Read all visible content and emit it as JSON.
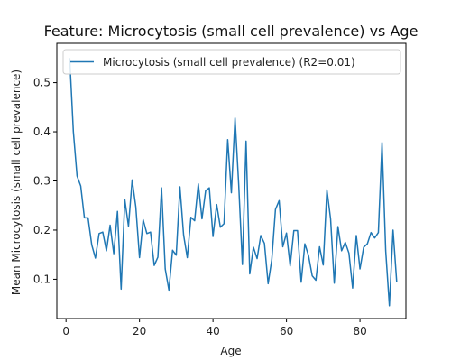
{
  "chart_data": {
    "type": "line",
    "title": "Feature: Microcytosis (small cell prevalence) vs Age",
    "xlabel": "Age",
    "ylabel": "Mean Microcytosis (small cell prevalence)",
    "xlim": [
      -2.5,
      92.5
    ],
    "ylim": [
      0.02,
      0.58
    ],
    "xticks": [
      0,
      20,
      40,
      60,
      80
    ],
    "yticks": [
      0.1,
      0.2,
      0.3,
      0.4,
      0.5
    ],
    "grid": false,
    "legend_position": "top-left",
    "series": [
      {
        "name": "Microcytosis (small cell prevalence) (R2=0.01)",
        "color": "#1f77b4",
        "x": [
          1,
          2,
          3,
          4,
          5,
          6,
          7,
          8,
          9,
          10,
          11,
          12,
          13,
          14,
          15,
          16,
          17,
          18,
          19,
          20,
          21,
          22,
          23,
          24,
          25,
          26,
          27,
          28,
          29,
          30,
          31,
          32,
          33,
          34,
          35,
          36,
          37,
          38,
          39,
          40,
          41,
          42,
          43,
          44,
          45,
          46,
          47,
          48,
          49,
          50,
          51,
          52,
          53,
          54,
          55,
          56,
          57,
          58,
          59,
          60,
          61,
          62,
          63,
          64,
          65,
          66,
          67,
          68,
          69,
          70,
          71,
          72,
          73,
          74,
          75,
          76,
          77,
          78,
          79,
          80,
          81,
          82,
          83,
          84,
          85,
          86,
          87,
          88,
          89,
          90
        ],
        "y": [
          0.55,
          0.4,
          0.31,
          0.29,
          0.225,
          0.225,
          0.17,
          0.143,
          0.193,
          0.196,
          0.158,
          0.21,
          0.152,
          0.238,
          0.08,
          0.262,
          0.208,
          0.302,
          0.247,
          0.144,
          0.221,
          0.193,
          0.196,
          0.128,
          0.145,
          0.286,
          0.121,
          0.078,
          0.159,
          0.149,
          0.288,
          0.19,
          0.144,
          0.226,
          0.219,
          0.294,
          0.223,
          0.28,
          0.286,
          0.187,
          0.252,
          0.206,
          0.213,
          0.384,
          0.276,
          0.428,
          0.292,
          0.13,
          0.381,
          0.111,
          0.165,
          0.142,
          0.189,
          0.173,
          0.091,
          0.14,
          0.242,
          0.26,
          0.166,
          0.194,
          0.127,
          0.199,
          0.199,
          0.094,
          0.172,
          0.148,
          0.107,
          0.098,
          0.166,
          0.129,
          0.282,
          0.223,
          0.092,
          0.207,
          0.158,
          0.175,
          0.153,
          0.082,
          0.189,
          0.121,
          0.165,
          0.172,
          0.195,
          0.184,
          0.195,
          0.378,
          0.158,
          0.046,
          0.2,
          0.094
        ]
      }
    ]
  }
}
